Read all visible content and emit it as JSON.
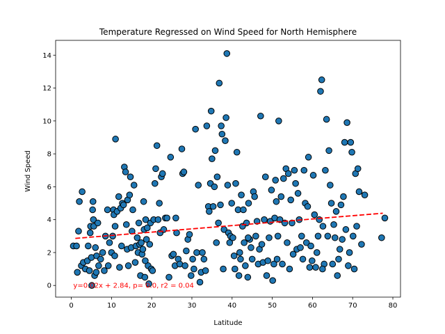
{
  "chart_data": {
    "type": "scatter",
    "title": "Temperature Regressed on Wind Speed for North Hemisphere",
    "xlabel": "Latitude",
    "ylabel": "Wind Speed",
    "xlim": [
      -3.9,
      81.9
    ],
    "ylim": [
      -0.71,
      14.9
    ],
    "xticks": [
      0,
      10,
      20,
      30,
      40,
      50,
      60,
      70,
      80
    ],
    "yticks": [
      0,
      2,
      4,
      6,
      8,
      10,
      12,
      14
    ],
    "grid": false,
    "point_color": "#1f77b4",
    "point_edge_color": "#000000",
    "regression": {
      "slope": 0.02,
      "intercept": 2.84,
      "x_range": [
        1.0,
        77.5
      ],
      "color": "#ff0000",
      "style": "dashed"
    },
    "annotation": {
      "text": "y=0.02x + 2.84, p= 0.0, r2 = 0.04",
      "x": 0.5,
      "y": 0.0,
      "color": "#ff0000"
    },
    "series": [
      {
        "points": [
          [
            0.5,
            2.4
          ],
          [
            1.3,
            2.4
          ],
          [
            1.5,
            0.8
          ],
          [
            1.8,
            3.3
          ],
          [
            2.0,
            5.1
          ],
          [
            2.7,
            5.7
          ],
          [
            2.5,
            1.2
          ],
          [
            3.0,
            1.4
          ],
          [
            3.5,
            1.0
          ],
          [
            4.0,
            1.5
          ],
          [
            4.2,
            2.4
          ],
          [
            4.5,
            0.9
          ],
          [
            4.7,
            3.2
          ],
          [
            4.8,
            3.6
          ],
          [
            5.0,
            1.7
          ],
          [
            5.1,
            0.0
          ],
          [
            5.3,
            4.6
          ],
          [
            5.4,
            5.1
          ],
          [
            5.5,
            4.0
          ],
          [
            5.6,
            3.6
          ],
          [
            5.8,
            0.6
          ],
          [
            6.0,
            2.3
          ],
          [
            6.2,
            0.8
          ],
          [
            6.3,
            1.8
          ],
          [
            6.6,
            3.8
          ],
          [
            6.8,
            1.2
          ],
          [
            7.3,
            1.6
          ],
          [
            7.8,
            2.0
          ],
          [
            8.2,
            0.9
          ],
          [
            8.5,
            3.0
          ],
          [
            9.0,
            4.6
          ],
          [
            9.2,
            1.2
          ],
          [
            9.5,
            2.6
          ],
          [
            10.0,
            2.0
          ],
          [
            10.3,
            3.0
          ],
          [
            10.5,
            4.6
          ],
          [
            10.6,
            4.3
          ],
          [
            10.8,
            1.8
          ],
          [
            10.9,
            3.6
          ],
          [
            11.0,
            8.9
          ],
          [
            11.4,
            4.5
          ],
          [
            11.8,
            5.4
          ],
          [
            12.0,
            1.1
          ],
          [
            12.3,
            4.7
          ],
          [
            12.5,
            2.4
          ],
          [
            12.7,
            5.0
          ],
          [
            13.0,
            4.9
          ],
          [
            13.2,
            7.2
          ],
          [
            13.5,
            6.9
          ],
          [
            13.7,
            3.7
          ],
          [
            13.9,
            2.2
          ],
          [
            14.0,
            5.2
          ],
          [
            14.2,
            1.2
          ],
          [
            14.5,
            5.5
          ],
          [
            14.7,
            6.6
          ],
          [
            14.9,
            2.3
          ],
          [
            15.1,
            3.3
          ],
          [
            15.3,
            4.6
          ],
          [
            15.6,
            6.1
          ],
          [
            15.9,
            1.4
          ],
          [
            16.1,
            2.4
          ],
          [
            16.4,
            2.9
          ],
          [
            16.6,
            2.0
          ],
          [
            16.8,
            3.8
          ],
          [
            17.0,
            2.5
          ],
          [
            17.2,
            0.6
          ],
          [
            17.4,
            2.6
          ],
          [
            17.6,
            1.9
          ],
          [
            17.8,
            2.2
          ],
          [
            18.0,
            5.1
          ],
          [
            18.1,
            3.4
          ],
          [
            18.3,
            0.5
          ],
          [
            18.5,
            4.0
          ],
          [
            18.7,
            2.8
          ],
          [
            18.9,
            3.5
          ],
          [
            19.1,
            1.2
          ],
          [
            19.3,
            0.1
          ],
          [
            19.5,
            2.5
          ],
          [
            19.7,
            3.8
          ],
          [
            19.9,
            1.0
          ],
          [
            20.2,
            0.9
          ],
          [
            20.5,
            4.0
          ],
          [
            20.8,
            6.2
          ],
          [
            21.0,
            7.1
          ],
          [
            21.3,
            8.5
          ],
          [
            21.6,
            4.0
          ],
          [
            21.9,
            5.0
          ],
          [
            22.1,
            3.2
          ],
          [
            22.4,
            6.6
          ],
          [
            22.7,
            6.8
          ],
          [
            23.0,
            3.4
          ],
          [
            23.4,
            4.1
          ],
          [
            23.8,
            4.1
          ],
          [
            24.3,
            0.5
          ],
          [
            24.7,
            7.8
          ],
          [
            25.0,
            1.8
          ],
          [
            25.4,
            1.9
          ],
          [
            25.8,
            1.2
          ],
          [
            26.2,
            3.2
          ],
          [
            26.6,
            1.6
          ],
          [
            27.0,
            1.3
          ],
          [
            27.5,
            8.3
          ],
          [
            27.7,
            6.8
          ],
          [
            28.0,
            6.9
          ],
          [
            28.3,
            1.2
          ],
          [
            28.6,
            2.1
          ],
          [
            29.0,
            2.8
          ],
          [
            29.4,
            3.1
          ],
          [
            29.8,
            0.6
          ],
          [
            30.2,
            1.6
          ],
          [
            30.5,
            1.0
          ],
          [
            30.9,
            9.5
          ],
          [
            31.2,
            2.0
          ],
          [
            31.6,
            6.1
          ],
          [
            32.0,
            0.2
          ],
          [
            32.3,
            0.8
          ],
          [
            32.6,
            2.0
          ],
          [
            33.0,
            1.6
          ],
          [
            33.4,
            0.9
          ],
          [
            33.7,
            9.7
          ],
          [
            34.1,
            4.8
          ],
          [
            34.3,
            4.5
          ],
          [
            34.6,
            6.2
          ],
          [
            34.8,
            10.6
          ],
          [
            35.0,
            7.7
          ],
          [
            35.3,
            4.8
          ],
          [
            35.6,
            6.0
          ],
          [
            35.8,
            8.2
          ],
          [
            36.1,
            2.6
          ],
          [
            36.3,
            6.6
          ],
          [
            36.6,
            3.8
          ],
          [
            36.8,
            12.3
          ],
          [
            37.1,
            4.9
          ],
          [
            37.3,
            9.7
          ],
          [
            37.5,
            9.2
          ],
          [
            37.8,
            1.0
          ],
          [
            38.0,
            3.4
          ],
          [
            38.3,
            8.8
          ],
          [
            38.5,
            10.2
          ],
          [
            38.7,
            14.1
          ],
          [
            38.9,
            6.1
          ],
          [
            39.1,
            3.2
          ],
          [
            39.4,
            2.6
          ],
          [
            39.6,
            3.0
          ],
          [
            39.9,
            5.0
          ],
          [
            40.2,
            2.9
          ],
          [
            40.5,
            1.8
          ],
          [
            40.7,
            1.0
          ],
          [
            40.9,
            6.2
          ],
          [
            41.2,
            8.1
          ],
          [
            41.5,
            4.6
          ],
          [
            41.7,
            0.6
          ],
          [
            41.9,
            2.0
          ],
          [
            42.1,
            1.6
          ],
          [
            42.3,
            5.5
          ],
          [
            42.6,
            3.6
          ],
          [
            42.8,
            4.6
          ],
          [
            43.0,
            2.6
          ],
          [
            43.3,
            1.2
          ],
          [
            43.6,
            3.8
          ],
          [
            43.9,
            0.5
          ],
          [
            44.1,
            5.0
          ],
          [
            44.4,
            2.8
          ],
          [
            44.7,
            2.3
          ],
          [
            45.0,
            1.6
          ],
          [
            45.3,
            5.7
          ],
          [
            45.6,
            5.4
          ],
          [
            45.9,
            3.0
          ],
          [
            46.2,
            3.9
          ],
          [
            46.5,
            1.3
          ],
          [
            46.8,
            2.2
          ],
          [
            47.1,
            10.3
          ],
          [
            47.4,
            2.5
          ],
          [
            47.7,
            1.4
          ],
          [
            48.0,
            4.0
          ],
          [
            48.3,
            6.6
          ],
          [
            48.6,
            0.6
          ],
          [
            48.9,
            1.5
          ],
          [
            49.2,
            2.9
          ],
          [
            49.5,
            3.9
          ],
          [
            49.8,
            5.8
          ],
          [
            50.1,
            0.3
          ],
          [
            50.4,
            1.3
          ],
          [
            50.6,
            4.1
          ],
          [
            50.8,
            6.4
          ],
          [
            51.0,
            5.1
          ],
          [
            51.2,
            1.6
          ],
          [
            51.4,
            3.0
          ],
          [
            51.6,
            10.0
          ],
          [
            51.9,
            4.0
          ],
          [
            52.2,
            5.4
          ],
          [
            52.5,
            1.3
          ],
          [
            52.8,
            6.5
          ],
          [
            53.1,
            3.8
          ],
          [
            53.4,
            7.1
          ],
          [
            53.7,
            2.6
          ],
          [
            54.0,
            6.8
          ],
          [
            54.3,
            1.0
          ],
          [
            54.6,
            5.2
          ],
          [
            54.9,
            3.8
          ],
          [
            55.2,
            1.9
          ],
          [
            55.5,
            7.0
          ],
          [
            55.8,
            6.2
          ],
          [
            56.1,
            2.2
          ],
          [
            56.4,
            5.6
          ],
          [
            56.7,
            4.0
          ],
          [
            57.0,
            2.3
          ],
          [
            57.3,
            3.0
          ],
          [
            57.6,
            1.6
          ],
          [
            57.9,
            7.0
          ],
          [
            58.2,
            5.0
          ],
          [
            58.5,
            2.6
          ],
          [
            58.8,
            4.8
          ],
          [
            59.0,
            7.8
          ],
          [
            59.3,
            1.1
          ],
          [
            59.6,
            2.4
          ],
          [
            59.9,
            1.5
          ],
          [
            60.2,
            6.7
          ],
          [
            60.5,
            4.3
          ],
          [
            60.8,
            1.1
          ],
          [
            61.1,
            2.0
          ],
          [
            61.4,
            3.0
          ],
          [
            61.7,
            4.0
          ],
          [
            62.0,
            11.8
          ],
          [
            62.3,
            12.5
          ],
          [
            62.6,
            3.6
          ],
          [
            62.9,
            1.3
          ],
          [
            63.2,
            7.0
          ],
          [
            63.5,
            10.1
          ],
          [
            63.8,
            3.0
          ],
          [
            64.1,
            8.2
          ],
          [
            64.4,
            6.1
          ],
          [
            64.7,
            5.0
          ],
          [
            65.0,
            1.3
          ],
          [
            65.3,
            3.7
          ],
          [
            65.6,
            2.9
          ],
          [
            65.9,
            4.5
          ],
          [
            66.2,
            0.6
          ],
          [
            66.5,
            1.6
          ],
          [
            66.8,
            2.2
          ],
          [
            67.1,
            4.9
          ],
          [
            67.4,
            2.8
          ],
          [
            67.7,
            5.4
          ],
          [
            68.0,
            8.7
          ],
          [
            68.3,
            3.4
          ],
          [
            68.6,
            9.9
          ],
          [
            68.9,
            1.2
          ],
          [
            69.2,
            2.0
          ],
          [
            69.5,
            8.7
          ],
          [
            69.8,
            8.1
          ],
          [
            70.1,
            3.0
          ],
          [
            70.4,
            1.0
          ],
          [
            70.7,
            6.8
          ],
          [
            71.0,
            3.6
          ],
          [
            71.3,
            7.1
          ],
          [
            71.6,
            5.7
          ],
          [
            72.2,
            2.5
          ],
          [
            73.0,
            5.5
          ],
          [
            77.2,
            2.9
          ],
          [
            78.0,
            4.1
          ],
          [
            62.5,
            1.0
          ],
          [
            44.0,
            2.9
          ],
          [
            26.0,
            4.1
          ],
          [
            18.4,
            1.5
          ]
        ]
      }
    ]
  }
}
